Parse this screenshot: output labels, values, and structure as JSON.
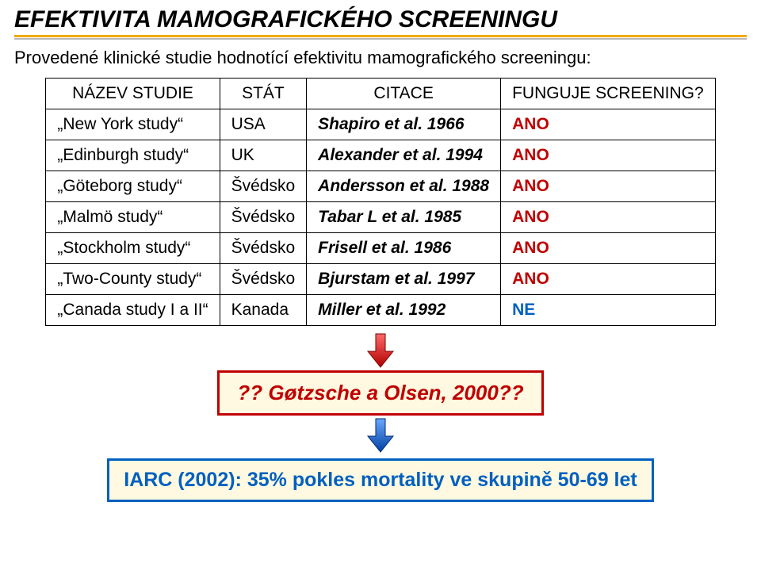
{
  "title": "EFEKTIVITA MAMOGRAFICKÉHO SCREENINGU",
  "subtitle": "Provedené klinické studie hodnotící efektivitu mamografického screeningu:",
  "headers": {
    "name": "NÁZEV STUDIE",
    "country": "STÁT",
    "citation": "CITACE",
    "works": "FUNGUJE SCREENING?"
  },
  "rows": [
    {
      "name": "„New York study“",
      "country": "USA",
      "citation": "Shapiro et al. 1966",
      "result": "ANO",
      "result_class": "ans-yes"
    },
    {
      "name": "„Edinburgh study“",
      "country": "UK",
      "citation": "Alexander et al. 1994",
      "result": "ANO",
      "result_class": "ans-yes"
    },
    {
      "name": "„Göteborg study“",
      "country": "Švédsko",
      "citation": "Andersson et al. 1988",
      "result": "ANO",
      "result_class": "ans-yes"
    },
    {
      "name": "„Malmö study“",
      "country": "Švédsko",
      "citation": "Tabar L et al. 1985",
      "result": "ANO",
      "result_class": "ans-yes"
    },
    {
      "name": "„Stockholm study“",
      "country": "Švédsko",
      "citation": "Frisell et al. 1986",
      "result": "ANO",
      "result_class": "ans-yes"
    },
    {
      "name": "„Two-County study“",
      "country": "Švédsko",
      "citation": "Bjurstam et al. 1997",
      "result": "ANO",
      "result_class": "ans-yes"
    },
    {
      "name": "„Canada study I a II“",
      "country": "Kanada",
      "citation": "Miller et al. 1992",
      "result": "NE",
      "result_class": "ans-no"
    }
  ],
  "box_red": "?? Gøtzsche a Olsen, 2000??",
  "box_blue": "IARC (2002): 35% pokles mortality ve skupině 50-69 let",
  "arrow_red": "#c00000",
  "arrow_blue": "#0060c0"
}
